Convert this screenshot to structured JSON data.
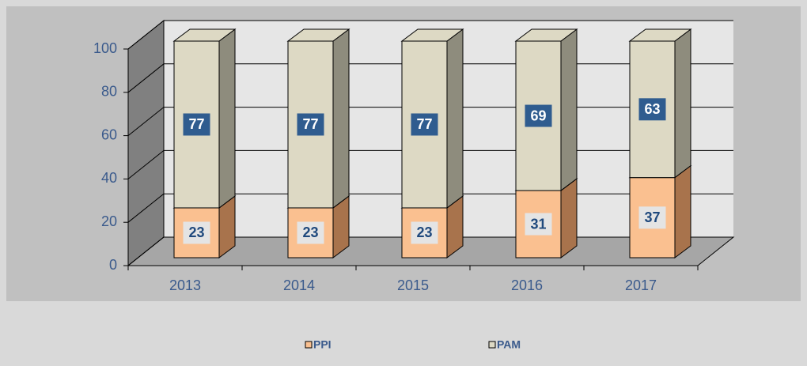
{
  "chart_data": {
    "type": "bar",
    "stacked": true,
    "three_d": true,
    "categories": [
      "2013",
      "2014",
      "2015",
      "2016",
      "2017"
    ],
    "series": [
      {
        "name": "PPI",
        "color": "#fac090",
        "side_color": "#a8734c",
        "label_box": "#e4e4e4",
        "label_text": "#1f497d",
        "values": [
          23,
          23,
          23,
          31,
          37
        ]
      },
      {
        "name": "PAM",
        "color": "#ddd9c4",
        "side_color": "#8e8c7d",
        "label_box": "#2f5c8f",
        "label_text": "#ffffff",
        "values": [
          77,
          77,
          77,
          69,
          63
        ]
      }
    ],
    "ylim": [
      0,
      100
    ],
    "yticks": [
      0,
      20,
      40,
      60,
      80,
      100
    ],
    "grid": true,
    "legend": "bottom"
  }
}
